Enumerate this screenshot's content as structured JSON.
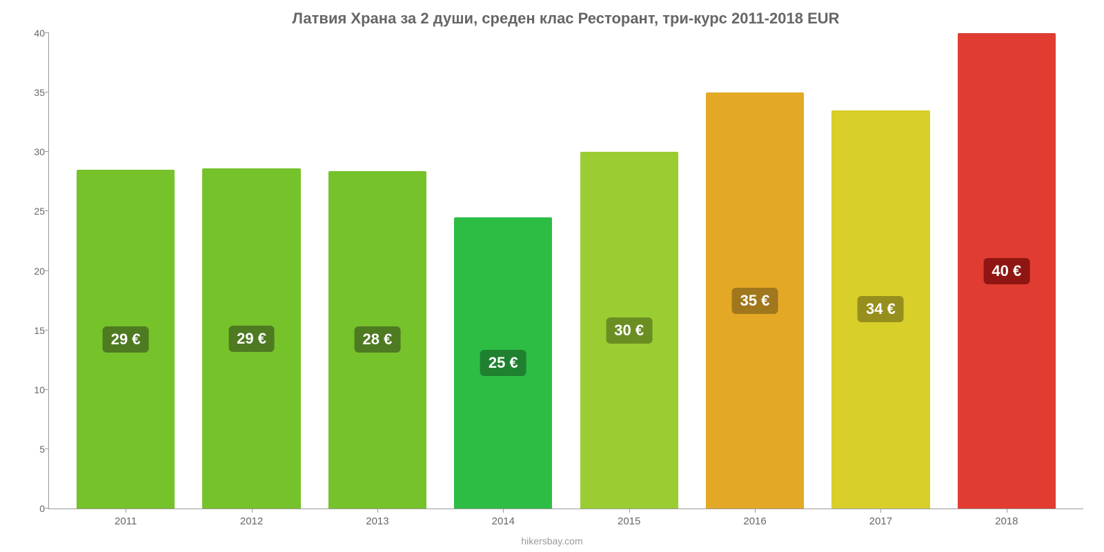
{
  "chart": {
    "type": "bar",
    "title": "Латвия Храна за 2 души, среден клас Ресторант, три-курс 2011-2018 EUR",
    "title_fontsize": 22,
    "title_color": "#666666",
    "attribution": "hikersbay.com",
    "attribution_color": "#999999",
    "attribution_fontsize": 14,
    "background_color": "#ffffff",
    "axis_color": "#999999",
    "tick_label_color": "#666666",
    "tick_fontsize": 14,
    "ylim": [
      0,
      40
    ],
    "yticks": [
      0,
      5,
      10,
      15,
      20,
      25,
      30,
      35,
      40
    ],
    "categories": [
      "2011",
      "2012",
      "2013",
      "2014",
      "2015",
      "2016",
      "2017",
      "2018"
    ],
    "values": [
      28.5,
      28.6,
      28.4,
      24.5,
      30,
      35,
      33.5,
      40
    ],
    "value_labels": [
      "29 €",
      "29 €",
      "28 €",
      "25 €",
      "30 €",
      "35 €",
      "34 €",
      "40 €"
    ],
    "bar_colors": [
      "#76c22b",
      "#76c22b",
      "#76c22b",
      "#2dbd44",
      "#9acd32",
      "#e3a826",
      "#d9cf2a",
      "#e03c31"
    ],
    "label_badge_colors": [
      "#4e7a21",
      "#4e7a21",
      "#4e7a21",
      "#1f8030",
      "#6b8e23",
      "#a0771c",
      "#978f1d",
      "#8f1612"
    ],
    "bar_width_pct": 78,
    "value_label_fontsize": 22,
    "value_label_color": "#ffffff"
  }
}
